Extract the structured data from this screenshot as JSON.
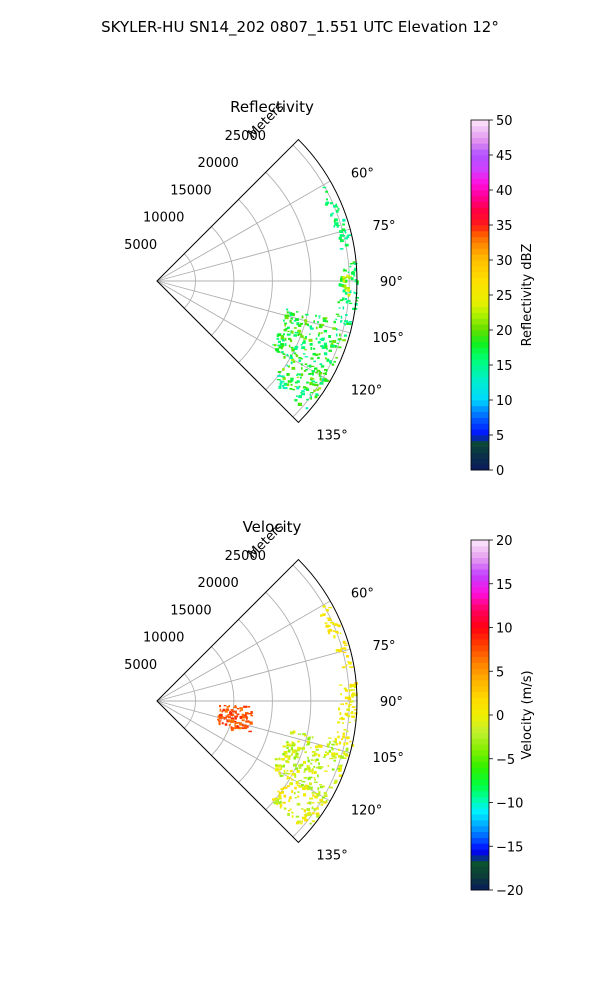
{
  "figure": {
    "title": "SKYLER-HU  SN14_202  0807_1.551 UTC Elevation 12°"
  },
  "chart_data": [
    {
      "type": "heatmap",
      "subtype": "polar-sector-ppi",
      "title": "Reflectivity",
      "radial_axis_label": "Meters",
      "radial_ticks": [
        5000,
        10000,
        15000,
        20000,
        25000
      ],
      "radial_tick_labels": [
        "5000",
        "10000",
        "15000",
        "20000",
        "25000"
      ],
      "rlim": [
        0,
        26000
      ],
      "azimuth_range_deg": [
        45,
        135
      ],
      "angle_ticks": [
        60,
        75,
        90,
        105,
        120,
        135
      ],
      "angle_tick_labels": [
        "60°",
        "75°",
        "90°",
        "105°",
        "120°",
        "135°"
      ],
      "grid": true,
      "colorbar": {
        "label": "Reflectivity dBZ",
        "range": [
          0,
          50
        ],
        "ticks": [
          0,
          5,
          10,
          15,
          20,
          25,
          30,
          35,
          40,
          45,
          50
        ],
        "tick_labels": [
          "0",
          "5",
          "10",
          "15",
          "20",
          "25",
          "30",
          "35",
          "40",
          "45",
          "50"
        ],
        "placement": "right"
      },
      "echo_regions": [
        {
          "az_deg": [
            120,
            131
          ],
          "r_m": [
            19500,
            25500
          ],
          "value_range": [
            13,
            22
          ]
        },
        {
          "az_deg": [
            102,
            121
          ],
          "r_m": [
            17000,
            25500
          ],
          "value_range": [
            14,
            21
          ]
        },
        {
          "az_deg": [
            84,
            103
          ],
          "r_m": [
            23500,
            26000
          ],
          "value_range": [
            14,
            19
          ]
        },
        {
          "az_deg": [
            60,
            80
          ],
          "r_m": [
            24000,
            25500
          ],
          "value_range": [
            14,
            18
          ]
        },
        {
          "az_deg": [
            88,
            94
          ],
          "r_m": [
            24000,
            25000
          ],
          "value_range": [
            20,
            25
          ]
        }
      ]
    },
    {
      "type": "heatmap",
      "subtype": "polar-sector-ppi",
      "title": "Velocity",
      "radial_axis_label": "Meters",
      "radial_ticks": [
        5000,
        10000,
        15000,
        20000,
        25000
      ],
      "radial_tick_labels": [
        "5000",
        "10000",
        "15000",
        "20000",
        "25000"
      ],
      "rlim": [
        0,
        26000
      ],
      "azimuth_range_deg": [
        45,
        135
      ],
      "angle_ticks": [
        60,
        75,
        90,
        105,
        120,
        135
      ],
      "angle_tick_labels": [
        "60°",
        "75°",
        "90°",
        "105°",
        "120°",
        "135°"
      ],
      "grid": true,
      "colorbar": {
        "label": "Velocity (m/s)",
        "range": [
          -20,
          20
        ],
        "ticks": [
          -20,
          -15,
          -10,
          -5,
          0,
          5,
          10,
          15,
          20
        ],
        "tick_labels": [
          "−20",
          "−15",
          "−10",
          "−5",
          "0",
          "5",
          "10",
          "15",
          "20"
        ],
        "placement": "right"
      },
      "echo_regions": [
        {
          "az_deg": [
            120,
            131
          ],
          "r_m": [
            19500,
            25500
          ],
          "value_range": [
            -3,
            2
          ]
        },
        {
          "az_deg": [
            102,
            121
          ],
          "r_m": [
            17000,
            25500
          ],
          "value_range": [
            -4,
            1
          ]
        },
        {
          "az_deg": [
            84,
            103
          ],
          "r_m": [
            23500,
            26000
          ],
          "value_range": [
            -1,
            2
          ]
        },
        {
          "az_deg": [
            60,
            80
          ],
          "r_m": [
            24000,
            25500
          ],
          "value_range": [
            0,
            2
          ]
        },
        {
          "az_deg": [
            93,
            110
          ],
          "r_m": [
            8000,
            12500
          ],
          "value_range": [
            6,
            9
          ]
        }
      ]
    }
  ]
}
